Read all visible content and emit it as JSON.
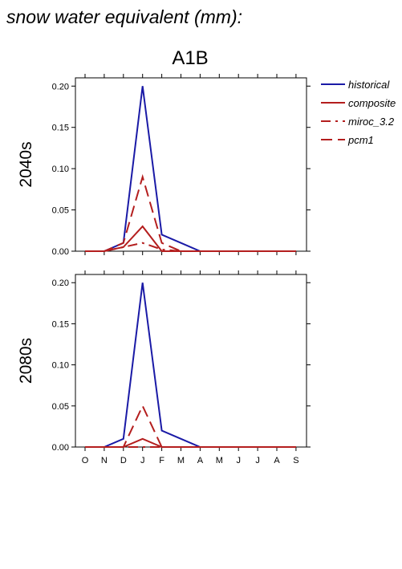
{
  "title": "snow water equivalent (mm):",
  "chart_data": {
    "type": "line",
    "scenario": "A1B",
    "categories": [
      "O",
      "N",
      "D",
      "J",
      "F",
      "M",
      "A",
      "M",
      "J",
      "J",
      "A",
      "S"
    ],
    "ylim": [
      0,
      0.21
    ],
    "yticks": [
      "0.00",
      "0.05",
      "0.10",
      "0.15",
      "0.20"
    ],
    "ytick_values": [
      0,
      0.05,
      0.1,
      0.15,
      0.2
    ],
    "grid": false,
    "legend_position": "right",
    "legend": [
      {
        "name": "historical",
        "color": "#1a1aa6",
        "style": "solid"
      },
      {
        "name": "composite",
        "color": "#b41e1e",
        "style": "solid"
      },
      {
        "name": "miroc_3.2",
        "color": "#b41e1e",
        "style": "dashdot"
      },
      {
        "name": "pcm1",
        "color": "#b41e1e",
        "style": "dashed"
      }
    ],
    "panels": [
      {
        "label": "2040s",
        "series": [
          {
            "name": "historical",
            "color": "#1a1aa6",
            "style": "solid",
            "values": [
              0,
              0,
              0.01,
              0.2,
              0.02,
              0.01,
              0,
              0,
              0,
              0,
              0,
              0
            ]
          },
          {
            "name": "composite",
            "color": "#b41e1e",
            "style": "solid",
            "values": [
              0,
              0,
              0.005,
              0.03,
              0,
              0,
              0,
              0,
              0,
              0,
              0,
              0
            ]
          },
          {
            "name": "miroc_3.2",
            "color": "#b41e1e",
            "style": "dashdot",
            "values": [
              0,
              0,
              0.005,
              0.01,
              0.002,
              0,
              0,
              0,
              0,
              0,
              0,
              0
            ]
          },
          {
            "name": "pcm1",
            "color": "#b41e1e",
            "style": "dashed",
            "values": [
              0,
              0,
              0.01,
              0.09,
              0.01,
              0,
              0,
              0,
              0,
              0,
              0,
              0
            ]
          }
        ]
      },
      {
        "label": "2080s",
        "series": [
          {
            "name": "historical",
            "color": "#1a1aa6",
            "style": "solid",
            "values": [
              0,
              0,
              0.01,
              0.2,
              0.02,
              0.01,
              0,
              0,
              0,
              0,
              0,
              0
            ]
          },
          {
            "name": "composite",
            "color": "#b41e1e",
            "style": "solid",
            "values": [
              0,
              0,
              0,
              0.01,
              0,
              0,
              0,
              0,
              0,
              0,
              0,
              0
            ]
          },
          {
            "name": "miroc_3.2",
            "color": "#b41e1e",
            "style": "dashdot",
            "values": [
              0,
              0,
              0,
              0,
              0,
              0,
              0,
              0,
              0,
              0,
              0,
              0
            ]
          },
          {
            "name": "pcm1",
            "color": "#b41e1e",
            "style": "dashed",
            "values": [
              0,
              0,
              0,
              0.05,
              0,
              0,
              0,
              0,
              0,
              0,
              0,
              0
            ]
          }
        ]
      }
    ]
  }
}
